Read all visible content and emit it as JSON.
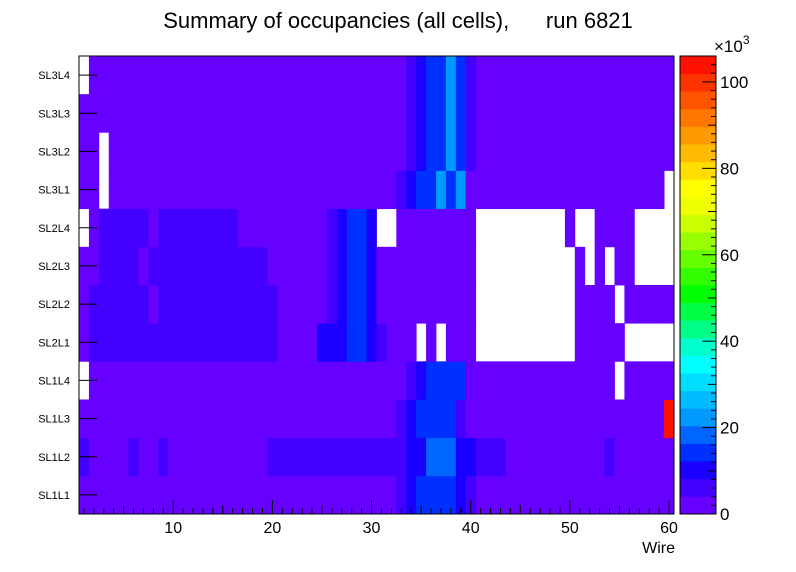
{
  "chart_data": {
    "type": "heatmap",
    "title_main": "Summary of occupancies (all cells),",
    "title_run": "run 6821",
    "xlabel": "Wire",
    "xlim": [
      0.5,
      60.5
    ],
    "x_ticks": [
      "10",
      "20",
      "30",
      "40",
      "50",
      "60"
    ],
    "x_tick_values": [
      10,
      20,
      30,
      40,
      50,
      60
    ],
    "rows": [
      "SL1L1",
      "SL1L2",
      "SL1L3",
      "SL1L4",
      "SL2L1",
      "SL2L2",
      "SL2L3",
      "SL2L4",
      "SL3L1",
      "SL3L2",
      "SL3L3",
      "SL3L4"
    ],
    "z_multiplier": "×10",
    "z_exponent": "3",
    "z_ticks": [
      "0",
      "20",
      "40",
      "60",
      "80",
      "100"
    ],
    "z_tick_values": [
      0,
      20,
      40,
      60,
      80,
      100
    ],
    "zlim": [
      0,
      106
    ],
    "palette": [
      "#6600ff",
      "#4400ff",
      "#1a00ff",
      "#0030ff",
      "#0066ff",
      "#0099ff",
      "#00bbff",
      "#00ddff",
      "#00ffff",
      "#00ffcc",
      "#00ff88",
      "#00ff44",
      "#00ff00",
      "#33ff00",
      "#66ff00",
      "#99ff00",
      "#ccff00",
      "#eeff00",
      "#ffff00",
      "#ffdd00",
      "#ffbb00",
      "#ff9900",
      "#ff7700",
      "#ff5500",
      "#ff3300",
      "#ff1100"
    ],
    "values_unit": "thousands of hits",
    "empty_note": "0 = empty (white) cell",
    "values": [
      [
        3,
        3,
        3,
        3,
        3,
        3,
        3,
        3,
        3,
        3,
        3,
        3,
        3,
        3,
        3,
        3,
        3,
        3,
        3,
        3,
        3,
        3,
        3,
        3,
        3,
        3,
        3,
        3,
        3,
        3,
        3,
        3,
        7,
        11,
        15,
        15,
        15,
        15,
        11,
        7,
        3,
        3,
        3,
        3,
        3,
        3,
        3,
        3,
        3,
        3,
        3,
        3,
        3,
        3,
        3,
        3,
        3,
        3,
        3,
        3
      ],
      [
        5,
        3,
        3,
        3,
        3,
        5,
        3,
        3,
        5,
        3,
        3,
        3,
        3,
        3,
        3,
        3,
        3,
        3,
        3,
        5,
        5,
        5,
        5,
        5,
        5,
        5,
        5,
        5,
        5,
        5,
        5,
        5,
        5,
        11,
        11,
        17,
        17,
        17,
        11,
        11,
        5,
        5,
        5,
        3,
        3,
        3,
        3,
        3,
        3,
        3,
        3,
        3,
        3,
        5,
        3,
        3,
        3,
        3,
        3,
        3
      ],
      [
        3,
        3,
        3,
        3,
        3,
        3,
        3,
        3,
        3,
        3,
        3,
        3,
        3,
        3,
        3,
        3,
        3,
        3,
        3,
        3,
        3,
        3,
        3,
        3,
        3,
        3,
        3,
        3,
        3,
        3,
        3,
        3,
        7,
        11,
        15,
        15,
        15,
        15,
        7,
        3,
        3,
        3,
        3,
        3,
        3,
        3,
        3,
        3,
        3,
        3,
        3,
        3,
        3,
        3,
        3,
        3,
        3,
        3,
        3,
        104
      ],
      [
        0,
        3,
        3,
        3,
        3,
        3,
        3,
        3,
        3,
        3,
        3,
        3,
        3,
        3,
        3,
        3,
        3,
        3,
        3,
        3,
        3,
        3,
        3,
        3,
        3,
        3,
        3,
        3,
        3,
        3,
        3,
        3,
        3,
        7,
        11,
        15,
        15,
        15,
        15,
        3,
        3,
        3,
        3,
        3,
        3,
        3,
        3,
        3,
        3,
        3,
        3,
        3,
        3,
        3,
        0,
        3,
        3,
        3,
        3,
        3
      ],
      [
        3,
        5,
        5,
        5,
        5,
        5,
        5,
        5,
        5,
        5,
        5,
        5,
        5,
        5,
        5,
        5,
        5,
        5,
        5,
        5,
        3,
        3,
        3,
        3,
        9,
        9,
        11,
        15,
        15,
        11,
        7,
        3,
        3,
        3,
        0,
        3,
        0,
        3,
        3,
        3,
        0,
        0,
        0,
        0,
        0,
        0,
        0,
        0,
        0,
        0,
        3,
        3,
        3,
        3,
        3,
        0,
        0,
        0,
        0,
        0
      ],
      [
        3,
        5,
        5,
        5,
        5,
        5,
        5,
        3,
        5,
        5,
        5,
        5,
        5,
        5,
        5,
        5,
        5,
        5,
        5,
        5,
        3,
        3,
        3,
        3,
        3,
        5,
        9,
        13,
        13,
        9,
        3,
        3,
        3,
        3,
        3,
        3,
        3,
        3,
        3,
        3,
        0,
        0,
        0,
        0,
        0,
        0,
        0,
        0,
        0,
        0,
        3,
        3,
        3,
        3,
        0,
        3,
        3,
        3,
        3,
        3
      ],
      [
        3,
        3,
        5,
        5,
        5,
        5,
        3,
        5,
        5,
        5,
        5,
        5,
        5,
        5,
        5,
        5,
        5,
        5,
        5,
        3,
        3,
        3,
        3,
        3,
        3,
        5,
        9,
        13,
        13,
        9,
        3,
        3,
        3,
        3,
        3,
        3,
        3,
        3,
        3,
        3,
        0,
        0,
        0,
        0,
        0,
        0,
        0,
        0,
        0,
        0,
        3,
        0,
        3,
        0,
        3,
        3,
        0,
        0,
        0,
        0
      ],
      [
        0,
        3,
        5,
        5,
        5,
        5,
        5,
        3,
        5,
        5,
        5,
        5,
        5,
        5,
        5,
        5,
        3,
        3,
        3,
        3,
        3,
        3,
        3,
        3,
        3,
        5,
        9,
        13,
        13,
        9,
        0,
        0,
        3,
        3,
        3,
        3,
        3,
        3,
        3,
        3,
        0,
        0,
        0,
        0,
        0,
        0,
        0,
        0,
        0,
        3,
        0,
        0,
        3,
        3,
        3,
        3,
        0,
        0,
        0,
        0
      ],
      [
        3,
        3,
        0,
        3,
        3,
        3,
        3,
        3,
        3,
        3,
        3,
        3,
        3,
        3,
        3,
        3,
        3,
        3,
        3,
        3,
        3,
        3,
        3,
        3,
        3,
        3,
        3,
        3,
        3,
        3,
        3,
        3,
        7,
        11,
        15,
        15,
        21,
        15,
        21,
        3,
        3,
        3,
        3,
        3,
        3,
        3,
        3,
        3,
        3,
        3,
        3,
        3,
        3,
        3,
        3,
        3,
        3,
        3,
        3,
        0
      ],
      [
        3,
        3,
        0,
        3,
        3,
        3,
        3,
        3,
        3,
        3,
        3,
        3,
        3,
        3,
        3,
        3,
        3,
        3,
        3,
        3,
        3,
        3,
        3,
        3,
        3,
        3,
        3,
        3,
        3,
        3,
        3,
        3,
        3,
        7,
        11,
        15,
        15,
        21,
        15,
        7,
        3,
        3,
        3,
        3,
        3,
        3,
        3,
        3,
        3,
        3,
        3,
        3,
        3,
        3,
        3,
        3,
        3,
        3,
        3,
        3
      ],
      [
        3,
        3,
        3,
        3,
        3,
        3,
        3,
        3,
        3,
        3,
        3,
        3,
        3,
        3,
        3,
        3,
        3,
        3,
        3,
        3,
        3,
        3,
        3,
        3,
        3,
        3,
        3,
        3,
        3,
        3,
        3,
        3,
        3,
        7,
        11,
        15,
        15,
        21,
        15,
        7,
        3,
        3,
        3,
        3,
        3,
        3,
        3,
        3,
        3,
        3,
        3,
        3,
        3,
        3,
        3,
        3,
        3,
        3,
        3,
        3
      ],
      [
        0,
        3,
        3,
        3,
        3,
        3,
        3,
        3,
        3,
        3,
        3,
        3,
        3,
        3,
        3,
        3,
        3,
        3,
        3,
        3,
        3,
        3,
        3,
        3,
        3,
        3,
        3,
        3,
        3,
        3,
        3,
        3,
        3,
        7,
        11,
        15,
        15,
        21,
        15,
        7,
        3,
        3,
        3,
        3,
        3,
        3,
        3,
        3,
        3,
        3,
        3,
        3,
        3,
        3,
        3,
        3,
        3,
        3,
        3,
        3
      ]
    ]
  }
}
